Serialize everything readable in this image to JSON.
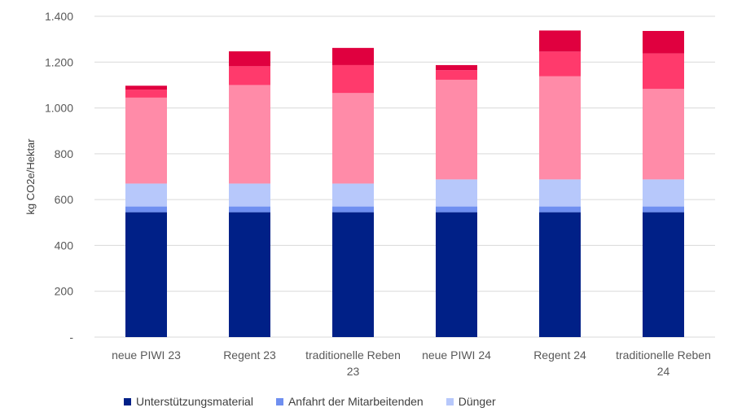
{
  "chart_data": {
    "type": "bar",
    "stacked": true,
    "ylabel": "kg CO2e/Hektar",
    "ylim": [
      0,
      1400
    ],
    "yticks": [
      0,
      200,
      400,
      600,
      800,
      1000,
      1200,
      1400
    ],
    "ytick_labels": [
      "-",
      "200",
      "400",
      "600",
      "800",
      "1.000",
      "1.200",
      "1.400"
    ],
    "grid": true,
    "legend_position": "bottom",
    "categories": [
      [
        "neue PIWI 23"
      ],
      [
        "Regent 23"
      ],
      [
        "traditionelle Reben",
        "23"
      ],
      [
        "neue PIWI  24"
      ],
      [
        "Regent 24"
      ],
      [
        "traditionelle Reben",
        "24"
      ]
    ],
    "series": [
      {
        "name": "Unterstützungsmaterial",
        "color": "#002087",
        "values": [
          545,
          545,
          545,
          545,
          545,
          545
        ]
      },
      {
        "name": "Anfahrt der Mitarbeitenden",
        "color": "#6F8FF0",
        "values": [
          25,
          25,
          25,
          25,
          25,
          25
        ]
      },
      {
        "name": "Dünger",
        "color": "#B7C8FB",
        "values": [
          100,
          100,
          100,
          118,
          118,
          118
        ]
      },
      {
        "color": "#FF8BA8",
        "values": [
          375,
          430,
          395,
          435,
          450,
          395
        ]
      },
      {
        "color": "#FF3A6C",
        "values": [
          35,
          82,
          122,
          42,
          108,
          155
        ]
      },
      {
        "color": "#E0003F",
        "values": [
          17,
          65,
          75,
          22,
          92,
          98
        ]
      }
    ]
  }
}
